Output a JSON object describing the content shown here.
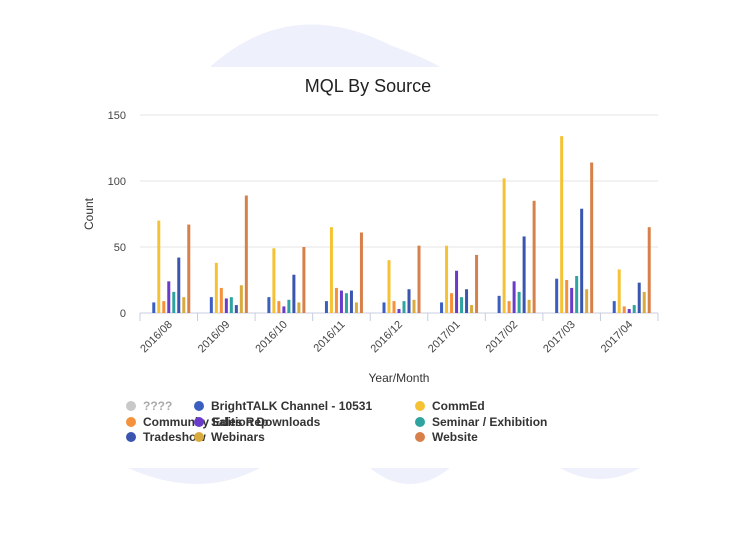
{
  "chart_data": {
    "type": "bar",
    "title": "MQL By Source",
    "xlabel": "Year/Month",
    "ylabel": "Count",
    "ylim": [
      0,
      150
    ],
    "yticks": [
      0,
      50,
      100,
      150
    ],
    "grid": true,
    "legend_position": "bottom",
    "categories": [
      "2016/08",
      "2016/09",
      "2016/10",
      "2016/11",
      "2016/12",
      "2017/01",
      "2017/02",
      "2017/03",
      "2017/04"
    ],
    "series": [
      {
        "name": "????",
        "color": "#c8c8c8",
        "values": [
          0,
          0,
          0,
          0,
          0,
          0,
          0,
          0,
          0
        ]
      },
      {
        "name": "BrightTALK Channel - 10531",
        "color": "#3b5fc0",
        "values": [
          8,
          12,
          12,
          9,
          8,
          8,
          13,
          26,
          9
        ]
      },
      {
        "name": "CommEd",
        "color": "#f5c236",
        "values": [
          70,
          38,
          49,
          65,
          40,
          51,
          102,
          134,
          33
        ]
      },
      {
        "name": "Community Edition Downloads",
        "color": "#f5913c",
        "values": [
          9,
          19,
          9,
          19,
          9,
          15,
          9,
          25,
          5
        ]
      },
      {
        "name": "Sales Rep",
        "color": "#6a3bc9",
        "values": [
          24,
          11,
          5,
          17,
          3,
          32,
          24,
          19,
          3
        ]
      },
      {
        "name": "Seminar / Exhibition",
        "color": "#2ea3a0",
        "values": [
          16,
          12,
          10,
          15,
          9,
          12,
          16,
          28,
          6
        ]
      },
      {
        "name": "Tradeshow",
        "color": "#3a55b0",
        "values": [
          42,
          6,
          29,
          17,
          18,
          18,
          58,
          79,
          23
        ]
      },
      {
        "name": "Webinars",
        "color": "#d9ab3f",
        "values": [
          12,
          21,
          8,
          8,
          10,
          6,
          10,
          18,
          16
        ]
      },
      {
        "name": "Website",
        "color": "#d8804a",
        "values": [
          67,
          89,
          50,
          61,
          51,
          44,
          85,
          114,
          65
        ]
      }
    ]
  }
}
